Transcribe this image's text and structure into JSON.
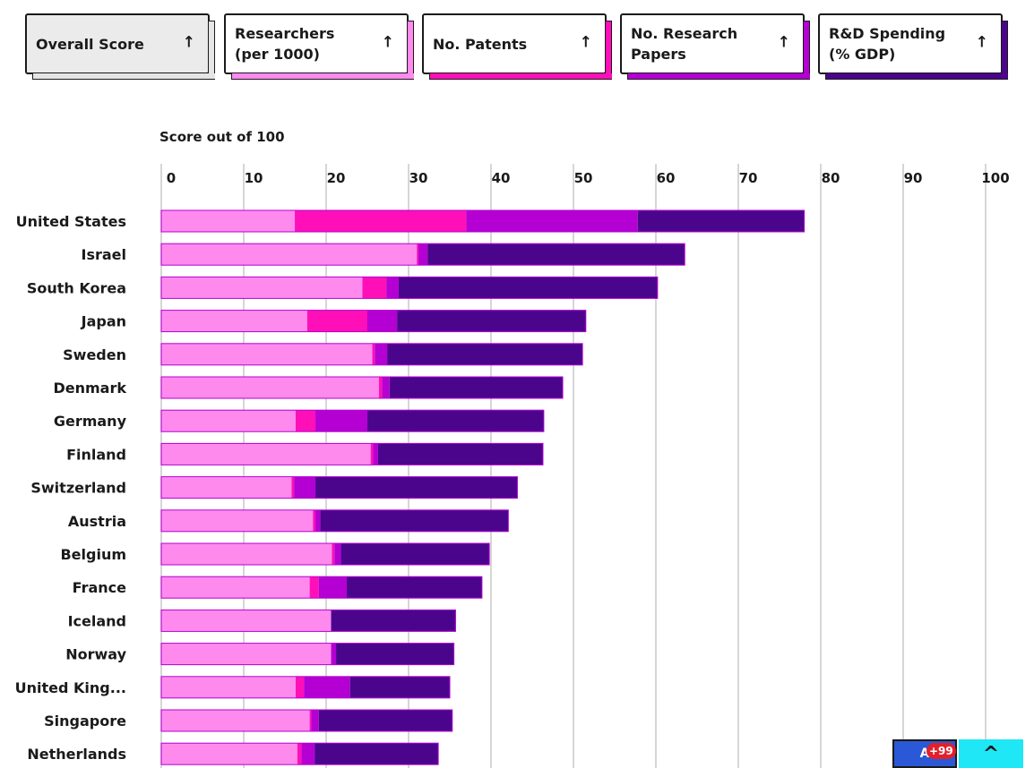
{
  "sort_buttons": [
    {
      "label": "Overall Score",
      "arrow": "↑",
      "accent": "#e5e5e5"
    },
    {
      "label": "Researchers\n(per 1000)",
      "arrow": "↑",
      "accent": "#ff8aee"
    },
    {
      "label": "No. Patents",
      "arrow": "↑",
      "accent": "#ff0fb8"
    },
    {
      "label": "No. Research\nPapers",
      "arrow": "↑",
      "accent": "#b400d2"
    },
    {
      "label": "R&D Spending\n(% GDP)",
      "arrow": "↑",
      "accent": "#4b058c"
    }
  ],
  "chart_data": {
    "type": "bar",
    "orientation": "horizontal",
    "stacked": true,
    "title": "Score out of 100",
    "xlim": [
      0,
      100
    ],
    "ticks": [
      0,
      10,
      20,
      30,
      40,
      50,
      60,
      70,
      80,
      90,
      100
    ],
    "grid": true,
    "categories": [
      "United States",
      "Israel",
      "South Korea",
      "Japan",
      "Sweden",
      "Denmark",
      "Germany",
      "Finland",
      "Switzerland",
      "Austria",
      "Belgium",
      "France",
      "Iceland",
      "Norway",
      "United King...",
      "Singapore",
      "Netherlands"
    ],
    "series": [
      {
        "color": "#ff8aee",
        "values": [
          16.2,
          31,
          24.4,
          17.7,
          25.6,
          26.4,
          16.3,
          25.4,
          15.8,
          18.4,
          20.7,
          18,
          20.6,
          20.6,
          16.3,
          18,
          16.5
        ]
      },
      {
        "color": "#ff0fb8",
        "values": [
          20.8,
          0.2,
          2.9,
          7.3,
          0.3,
          0.4,
          2.4,
          0.3,
          0.3,
          0.3,
          0.3,
          1.1,
          0,
          0,
          1,
          0.2,
          0.5
        ]
      },
      {
        "color": "#b400d2",
        "values": [
          20.8,
          1.1,
          1.5,
          3.6,
          1.5,
          0.9,
          6.3,
          0.6,
          2.6,
          0.6,
          0.8,
          3.4,
          0,
          0.6,
          5.6,
          0.9,
          1.6
        ]
      },
      {
        "color": "#4b058c",
        "values": [
          20.2,
          31.2,
          31.4,
          22.9,
          23.7,
          21,
          21.4,
          20,
          24.5,
          22.8,
          18,
          16.4,
          15.1,
          14.3,
          12.1,
          16.2,
          15
        ]
      }
    ]
  },
  "fab": {
    "badge_text": "A",
    "badge_count": "+99",
    "up_icon": "^"
  }
}
